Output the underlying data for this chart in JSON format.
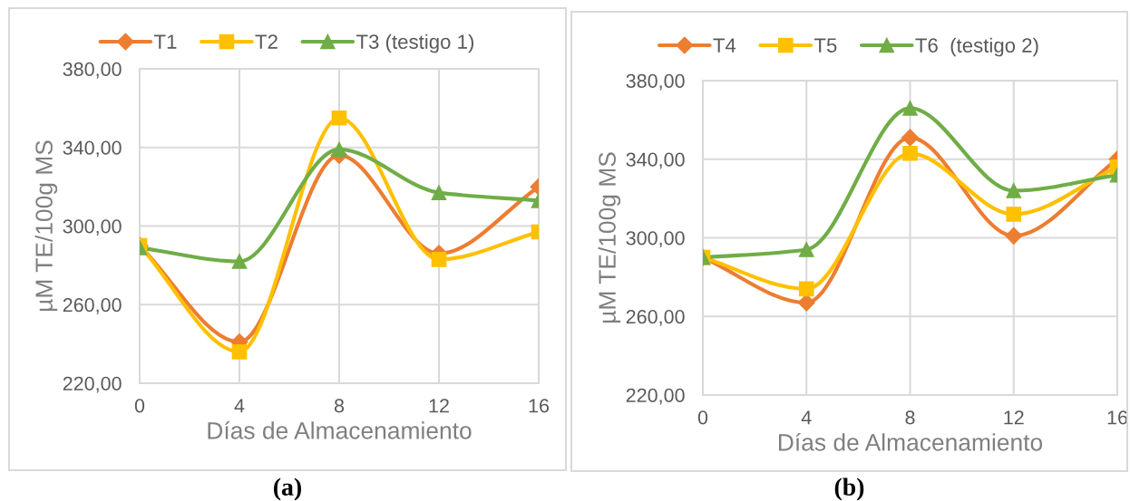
{
  "chart_data": [
    {
      "type": "line",
      "xlabel": "Días de Almacenamiento",
      "ylabel": "µM TE/100g MS",
      "x": [
        0,
        4,
        8,
        12,
        16
      ],
      "series": [
        {
          "name": "T1",
          "color": "#ed7d31",
          "marker": "diamond",
          "values": [
            290,
            241,
            336,
            286,
            320
          ]
        },
        {
          "name": "T2",
          "color": "#ffc000",
          "marker": "square",
          "values": [
            290,
            236,
            355,
            283,
            297
          ]
        },
        {
          "name": "T3 (testigo 1)",
          "color": "#70ad47",
          "marker": "triangle",
          "values": [
            289,
            282,
            339,
            317,
            313
          ]
        }
      ],
      "xlim": [
        0,
        16
      ],
      "xticks": [
        0,
        4,
        8,
        12,
        16
      ],
      "ylim": [
        220,
        380
      ],
      "yticks": [
        {
          "value": 220,
          "label": "220,00"
        },
        {
          "value": 260,
          "label": "260,00"
        },
        {
          "value": 300,
          "label": "300,00"
        },
        {
          "value": 340,
          "label": "340,00"
        },
        {
          "value": 380,
          "label": "380,00"
        }
      ],
      "grid": true,
      "legend": "top",
      "line_style": "solid",
      "annotations": [
        "(a)"
      ]
    },
    {
      "type": "line",
      "xlabel": "Días de Almacenamiento",
      "ylabel": "µM TE/100g MS",
      "x": [
        0,
        4,
        8,
        12,
        16
      ],
      "series": [
        {
          "name": "T4",
          "color": "#ed7d31",
          "marker": "diamond",
          "values": [
            290,
            267,
            351,
            301,
            340
          ]
        },
        {
          "name": "T5",
          "color": "#ffc000",
          "marker": "square",
          "values": [
            290,
            274,
            343,
            312,
            336
          ]
        },
        {
          "name": "T6  (testigo 2)",
          "color": "#70ad47",
          "marker": "triangle",
          "values": [
            290,
            294,
            366,
            324,
            332
          ]
        }
      ],
      "xlim": [
        0,
        16
      ],
      "xticks": [
        0,
        4,
        8,
        12,
        16
      ],
      "ylim": [
        220,
        380
      ],
      "yticks": [
        {
          "value": 220,
          "label": "220,00"
        },
        {
          "value": 260,
          "label": "260,00"
        },
        {
          "value": 300,
          "label": "300,00"
        },
        {
          "value": 340,
          "label": "340,00"
        },
        {
          "value": 380,
          "label": "380,00"
        }
      ],
      "grid": true,
      "legend": "top",
      "line_style": "solid",
      "annotations": [
        "(b)"
      ]
    }
  ]
}
